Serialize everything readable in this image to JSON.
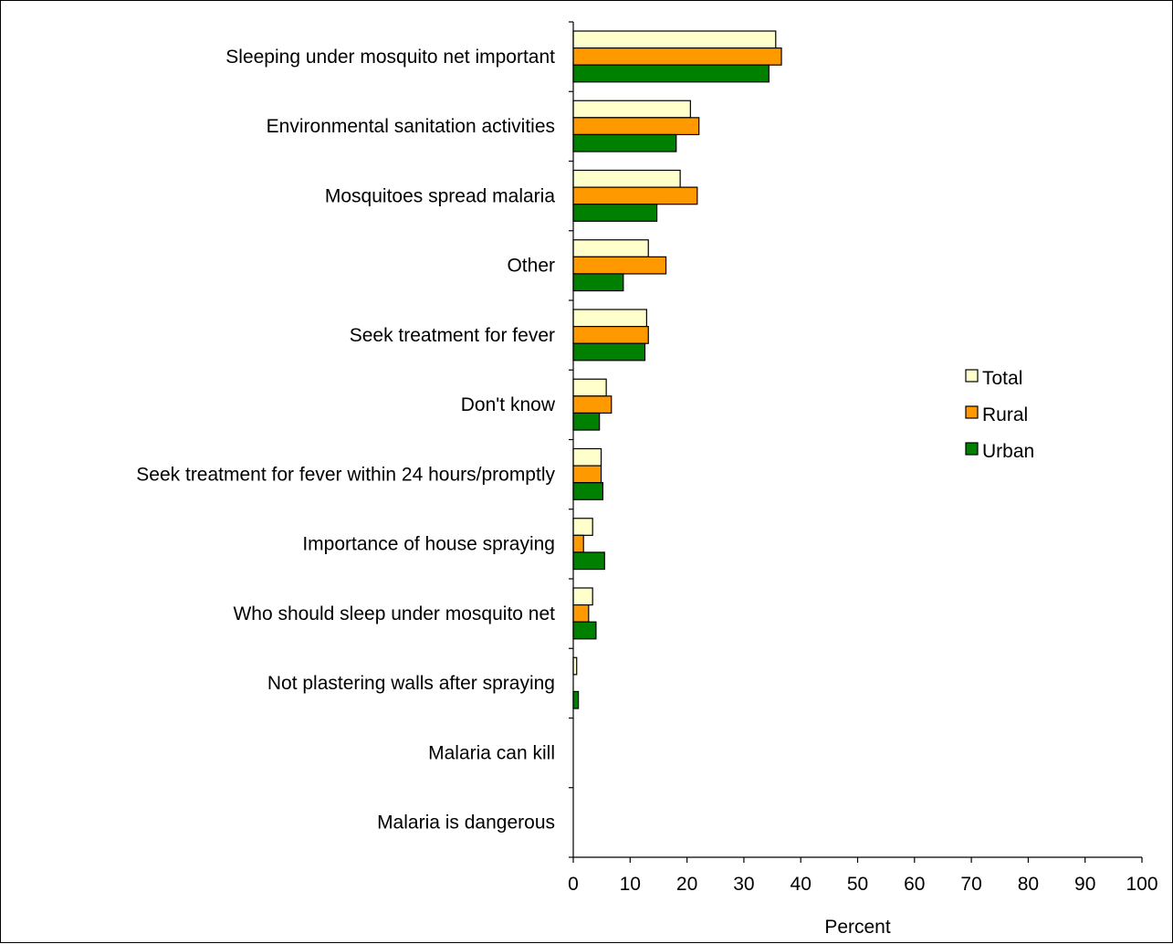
{
  "chart_data": {
    "type": "bar",
    "orientation": "horizontal",
    "categories": [
      "Sleeping under mosquito net important",
      "Environmental sanitation activities",
      "Mosquitoes spread malaria",
      "Other",
      "Seek treatment for fever",
      "Don't know",
      "Seek treatment for fever within 24 hours/promptly",
      "Importance of house spraying",
      "Who should sleep under mosquito net",
      "Not plastering walls after spraying",
      "Malaria can kill",
      "Malaria is dangerous"
    ],
    "series": [
      {
        "name": "Total",
        "color": "#FFFFCC",
        "values": [
          35.6,
          20.6,
          18.8,
          13.2,
          12.9,
          5.8,
          4.9,
          3.4,
          3.4,
          0.6,
          0,
          0
        ]
      },
      {
        "name": "Rural",
        "color": "#FF9900",
        "values": [
          36.6,
          22.1,
          21.8,
          16.3,
          13.2,
          6.7,
          4.9,
          1.8,
          2.7,
          0,
          0,
          0
        ]
      },
      {
        "name": "Urban",
        "color": "#008000",
        "values": [
          34.4,
          18.1,
          14.7,
          8.8,
          12.6,
          4.6,
          5.2,
          5.5,
          4.0,
          0.9,
          0,
          0
        ]
      }
    ],
    "xlabel": "Percent",
    "ylabel": "",
    "xlim": [
      0,
      100
    ],
    "xticks": [
      "0",
      "10",
      "20",
      "30",
      "40",
      "50",
      "60",
      "70",
      "80",
      "90",
      "100"
    ],
    "grid": false,
    "legend_position": "right"
  }
}
